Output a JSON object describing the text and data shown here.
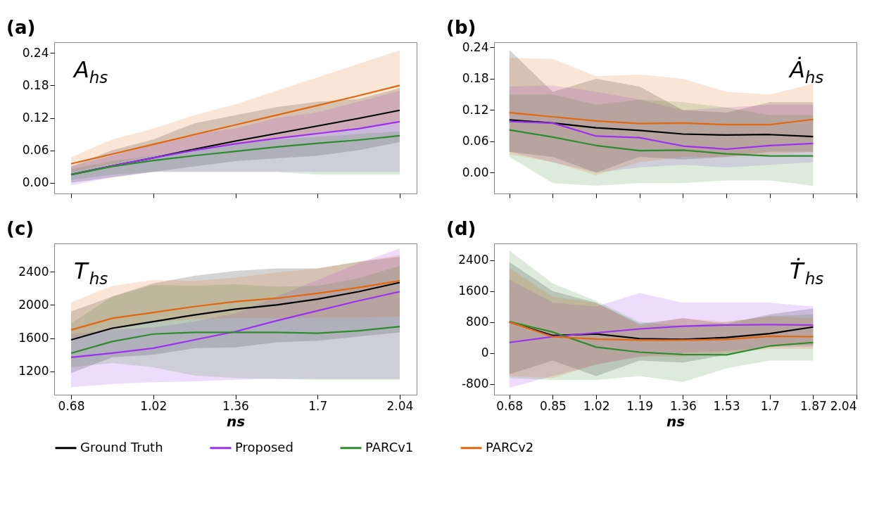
{
  "chart_data": [
    {
      "type": "line",
      "x": [
        0.68,
        0.85,
        1.02,
        1.19,
        1.36,
        1.53,
        1.7,
        1.87,
        2.04
      ],
      "xlim": [
        0.61,
        2.11
      ],
      "xticks": [
        0.68,
        1.02,
        1.36,
        1.7,
        2.04
      ],
      "ylim": [
        -0.02,
        0.26
      ],
      "yticks": [
        {
          "value": 0,
          "label": "0.00"
        },
        0.06,
        0.12,
        0.18,
        0.24
      ],
      "tick_labels": "y",
      "legend": "bottom",
      "annotations": [
        "(a)",
        "A$_{hs}$"
      ],
      "series": [
        {
          "name": "Ground Truth",
          "color": "#000000",
          "values": [
            0.015,
            0.031,
            0.046,
            0.062,
            0.077,
            0.091,
            0.105,
            0.119,
            0.134
          ],
          "lower": [
            0.0,
            0.01,
            0.02,
            0.03,
            0.04,
            0.045,
            0.05,
            0.06,
            0.075
          ],
          "upper": [
            0.03,
            0.06,
            0.08,
            0.11,
            0.125,
            0.14,
            0.15,
            0.155,
            0.175
          ]
        },
        {
          "name": "Proposed",
          "color": "#9b30f0",
          "values": [
            0.015,
            0.031,
            0.046,
            0.06,
            0.072,
            0.082,
            0.091,
            0.1,
            0.113
          ],
          "lower": [
            -0.005,
            0.01,
            0.02,
            0.02,
            0.02,
            0.02,
            0.02,
            0.02,
            0.02
          ],
          "upper": [
            0.03,
            0.05,
            0.07,
            0.09,
            0.1,
            0.12,
            0.13,
            0.15,
            0.17
          ]
        },
        {
          "name": "PARCv1",
          "color": "#2e8b2e",
          "values": [
            0.015,
            0.03,
            0.041,
            0.05,
            0.058,
            0.066,
            0.073,
            0.079,
            0.087
          ],
          "lower": [
            0.005,
            0.015,
            0.02,
            0.02,
            0.02,
            0.02,
            0.015,
            0.015,
            0.015
          ],
          "upper": [
            0.025,
            0.04,
            0.05,
            0.06,
            0.07,
            0.08,
            0.085,
            0.09,
            0.095
          ]
        },
        {
          "name": "PARCv2",
          "color": "#e0680f",
          "values": [
            0.035,
            0.053,
            0.071,
            0.089,
            0.107,
            0.125,
            0.143,
            0.161,
            0.18
          ],
          "lower": [
            0.02,
            0.035,
            0.05,
            0.06,
            0.07,
            0.08,
            0.09,
            0.1,
            0.115
          ],
          "upper": [
            0.047,
            0.08,
            0.1,
            0.125,
            0.145,
            0.17,
            0.195,
            0.22,
            0.245
          ]
        }
      ]
    },
    {
      "type": "line",
      "x": [
        0.68,
        0.85,
        1.02,
        1.19,
        1.36,
        1.53,
        1.7,
        1.87
      ],
      "xlim": [
        0.62,
        2.04
      ],
      "xticks": [
        0.68,
        0.85,
        1.02,
        1.19,
        1.36,
        1.53,
        1.7,
        1.87,
        2.04
      ],
      "ylim": [
        -0.04,
        0.25
      ],
      "yticks": [
        {
          "value": 0,
          "label": "0.00"
        },
        0.06,
        0.12,
        0.18,
        0.24
      ],
      "tick_labels": "y",
      "legend": "bottom",
      "annotations": [
        "(b)",
        "Ȧ$_{hs}$"
      ],
      "series": [
        {
          "name": "Ground Truth",
          "color": "#000000",
          "values": [
            0.101,
            0.095,
            0.086,
            0.081,
            0.074,
            0.072,
            0.073,
            0.069
          ],
          "lower": [
            0.04,
            0.03,
            0.0,
            0.03,
            0.025,
            0.03,
            0.04,
            0.04
          ],
          "upper": [
            0.235,
            0.155,
            0.18,
            0.165,
            0.12,
            0.115,
            0.135,
            0.135
          ]
        },
        {
          "name": "Proposed",
          "color": "#9b30f0",
          "values": [
            0.098,
            0.095,
            0.07,
            0.067,
            0.051,
            0.045,
            0.052,
            0.056
          ],
          "lower": [
            0.04,
            0.02,
            0.0,
            0.01,
            0.015,
            0.01,
            0.015,
            0.02
          ],
          "upper": [
            0.165,
            0.167,
            0.155,
            0.14,
            0.12,
            0.125,
            0.13,
            0.13
          ]
        },
        {
          "name": "PARCv1",
          "color": "#2e8b2e",
          "values": [
            0.082,
            0.068,
            0.052,
            0.042,
            0.043,
            0.036,
            0.032,
            0.032
          ],
          "lower": [
            0.03,
            -0.02,
            -0.025,
            -0.02,
            -0.02,
            -0.015,
            -0.015,
            -0.025
          ],
          "upper": [
            0.15,
            0.15,
            0.13,
            0.14,
            0.135,
            0.125,
            0.11,
            0.11
          ]
        },
        {
          "name": "PARCv2",
          "color": "#e0680f",
          "values": [
            0.115,
            0.107,
            0.099,
            0.094,
            0.095,
            0.092,
            0.092,
            0.102
          ],
          "lower": [
            0.035,
            0.02,
            -0.005,
            0.02,
            0.03,
            0.03,
            0.035,
            0.04
          ],
          "upper": [
            0.22,
            0.218,
            0.185,
            0.188,
            0.18,
            0.155,
            0.15,
            0.17
          ]
        }
      ]
    },
    {
      "type": "line",
      "x": [
        0.68,
        0.85,
        1.02,
        1.19,
        1.36,
        1.53,
        1.7,
        1.87,
        2.04
      ],
      "xlim": [
        0.61,
        2.11
      ],
      "xticks": [
        0.68,
        1.02,
        1.36,
        1.7,
        2.04
      ],
      "ylim": [
        920,
        2740
      ],
      "yticks": [
        1200,
        1600,
        2000,
        2400
      ],
      "xlabel": "ns",
      "legend": "bottom",
      "annotations": [
        "(c)",
        "T$_{hs}$"
      ],
      "series": [
        {
          "name": "Ground Truth",
          "color": "#000000",
          "values": [
            1580,
            1720,
            1800,
            1880,
            1950,
            2000,
            2070,
            2160,
            2270
          ],
          "lower": [
            1180,
            1370,
            1400,
            1480,
            1490,
            1550,
            1570,
            1620,
            1670
          ],
          "upper": [
            1920,
            2100,
            2260,
            2350,
            2410,
            2440,
            2440,
            2520,
            2580
          ]
        },
        {
          "name": "Proposed",
          "color": "#9b30f0",
          "values": [
            1370,
            1420,
            1480,
            1580,
            1680,
            1810,
            1930,
            2050,
            2160
          ],
          "lower": [
            1010,
            1050,
            1070,
            1080,
            1100,
            1110,
            1110,
            1110,
            1110
          ],
          "upper": [
            1650,
            1700,
            1730,
            1800,
            1900,
            2100,
            2300,
            2500,
            2680
          ]
        },
        {
          "name": "PARCv1",
          "color": "#2e8b2e",
          "values": [
            1420,
            1560,
            1650,
            1670,
            1670,
            1670,
            1660,
            1690,
            1740
          ],
          "lower": [
            1250,
            1300,
            1250,
            1150,
            1120,
            1110,
            1100,
            1100,
            1100
          ],
          "upper": [
            1780,
            2100,
            2240,
            2230,
            2250,
            2220,
            2230,
            2320,
            2470
          ]
        },
        {
          "name": "PARCv2",
          "color": "#e0680f",
          "values": [
            1700,
            1840,
            1910,
            1980,
            2040,
            2080,
            2140,
            2210,
            2290
          ],
          "lower": [
            1600,
            1700,
            1790,
            1830,
            1840,
            1840,
            1850,
            1850,
            1860
          ],
          "upper": [
            2030,
            2230,
            2300,
            2290,
            2330,
            2390,
            2440,
            2520,
            2600
          ]
        }
      ]
    },
    {
      "type": "line",
      "x": [
        0.68,
        0.85,
        1.02,
        1.19,
        1.36,
        1.53,
        1.7,
        1.87
      ],
      "xlim": [
        0.62,
        2.04
      ],
      "xticks": [
        0.68,
        0.85,
        1.02,
        1.19,
        1.36,
        1.53,
        1.7,
        1.87,
        2.04
      ],
      "ylim": [
        -1080,
        2830
      ],
      "yticks": [
        -800,
        0,
        800,
        1600,
        2400
      ],
      "xlabel": "ns",
      "legend": "bottom",
      "annotations": [
        "(d)",
        "Ṫ$_{hs}$"
      ],
      "series": [
        {
          "name": "Ground Truth",
          "color": "#000000",
          "values": [
            800,
            450,
            490,
            370,
            350,
            400,
            500,
            670
          ],
          "lower": [
            -550,
            -200,
            -600,
            -200,
            -250,
            -50,
            200,
            200
          ],
          "upper": [
            2350,
            1600,
            1300,
            750,
            900,
            750,
            1000,
            1150
          ]
        },
        {
          "name": "Proposed",
          "color": "#9b30f0",
          "values": [
            270,
            420,
            520,
            620,
            690,
            720,
            730,
            720
          ],
          "lower": [
            -900,
            -600,
            -300,
            -100,
            0,
            50,
            150,
            150
          ],
          "upper": [
            1900,
            1300,
            1200,
            1550,
            1300,
            1300,
            1300,
            1200
          ]
        },
        {
          "name": "PARCv1",
          "color": "#2e8b2e",
          "values": [
            810,
            540,
            150,
            20,
            -40,
            -50,
            180,
            270
          ],
          "lower": [
            -650,
            -700,
            -700,
            -600,
            -750,
            -400,
            -200,
            -200
          ],
          "upper": [
            2650,
            1800,
            1350,
            800,
            700,
            800,
            950,
            1000
          ]
        },
        {
          "name": "PARCv2",
          "color": "#e0680f",
          "values": [
            800,
            420,
            360,
            330,
            330,
            350,
            430,
            420
          ],
          "lower": [
            -600,
            -650,
            -300,
            -100,
            -100,
            0,
            100,
            100
          ],
          "upper": [
            2200,
            1450,
            1300,
            700,
            900,
            800,
            950,
            900
          ]
        }
      ]
    }
  ]
}
